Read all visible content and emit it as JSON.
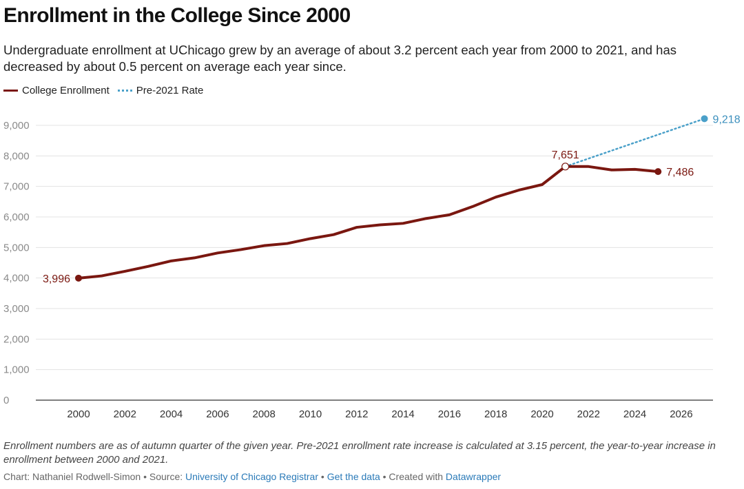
{
  "title": "Enrollment in the College Since 2000",
  "subtitle": "Undergraduate enrollment at UChicago grew by an average of about 3.2 percent each year from 2000 to 2021, and has decreased by about 0.5 percent on average each year since.",
  "legend": [
    {
      "label": "College Enrollment",
      "color": "#7a1710",
      "style": "solid"
    },
    {
      "label": "Pre-2021 Rate",
      "color": "#4aa0c9",
      "style": "dotted"
    }
  ],
  "notes": "Enrollment numbers are as of autumn quarter of the given year. Pre-2021 enrollment rate increase is calculated at 3.15 percent, the year-to-year increase in enrollment between 2000 and 2021.",
  "byline": {
    "chart_prefix": "Chart: Nathaniel Rodwell-Simon • Source: ",
    "source_link": "University of Chicago Registrar",
    "sep1": " • ",
    "data_link": "Get the data",
    "sep2": " • Created with ",
    "tool_link": "Datawrapper"
  },
  "chart_data": {
    "type": "line",
    "xlim": [
      1999,
      2028
    ],
    "ylim": [
      0,
      9000
    ],
    "x_ticks": [
      2000,
      2002,
      2004,
      2006,
      2008,
      2010,
      2012,
      2014,
      2016,
      2018,
      2020,
      2022,
      2024,
      2026
    ],
    "x_tick_labels": [
      "2000",
      "2002",
      "2004",
      "2006",
      "2008",
      "2010",
      "2012",
      "2014",
      "2016",
      "2018",
      "2020",
      "2022",
      "2024",
      "2026"
    ],
    "y_ticks": [
      0,
      1000,
      2000,
      3000,
      4000,
      5000,
      6000,
      7000,
      8000,
      9000
    ],
    "y_tick_labels": [
      "0",
      "1,000",
      "2,000",
      "3,000",
      "4,000",
      "5,000",
      "6,000",
      "7,000",
      "8,000",
      "9,000"
    ],
    "grid": true,
    "legend_position": "top-left",
    "series": [
      {
        "name": "College Enrollment",
        "color": "#7a1710",
        "style": "solid",
        "x": [
          2000,
          2001,
          2002,
          2003,
          2004,
          2005,
          2006,
          2007,
          2008,
          2009,
          2010,
          2011,
          2012,
          2013,
          2014,
          2015,
          2016,
          2017,
          2018,
          2019,
          2020,
          2021,
          2022,
          2023,
          2024,
          2025
        ],
        "y": [
          3996,
          4070,
          4220,
          4380,
          4560,
          4660,
          4820,
          4930,
          5060,
          5130,
          5290,
          5420,
          5660,
          5740,
          5790,
          5950,
          6070,
          6340,
          6650,
          6880,
          7060,
          7651,
          7651,
          7540,
          7560,
          7486
        ]
      },
      {
        "name": "Pre-2021 Rate",
        "color": "#4aa0c9",
        "style": "dotted",
        "x": [
          2021,
          2027
        ],
        "y": [
          7651,
          9218
        ]
      }
    ],
    "annotations": [
      {
        "text": "3,996",
        "x": 2000,
        "y": 3996,
        "series": "College Enrollment"
      },
      {
        "text": "7,651",
        "x": 2021,
        "y": 7651,
        "series": "College Enrollment"
      },
      {
        "text": "7,486",
        "x": 2025,
        "y": 7486,
        "series": "College Enrollment"
      },
      {
        "text": "9,218",
        "x": 2027,
        "y": 9218,
        "series": "Pre-2021 Rate"
      }
    ]
  }
}
